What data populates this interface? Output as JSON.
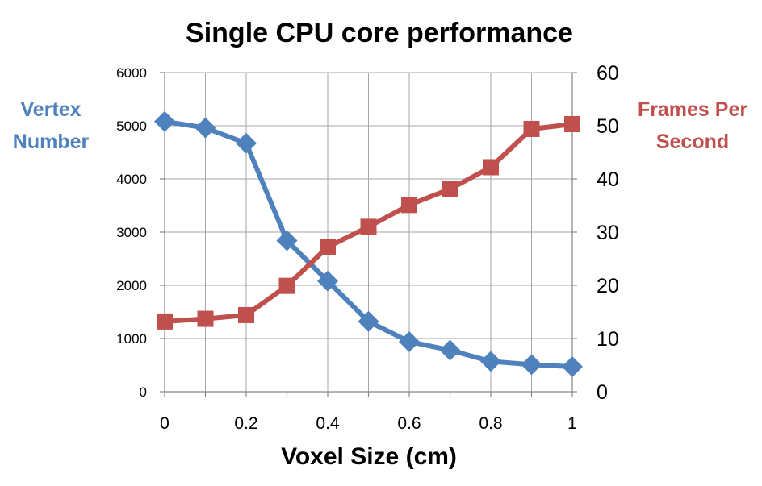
{
  "chart_data": {
    "type": "line",
    "title": "Single CPU core performance",
    "xlabel": "Voxel Size (cm)",
    "ylabel_left": [
      "Vertex",
      "Number"
    ],
    "ylabel_right": [
      "Frames Per",
      "Second"
    ],
    "x": [
      0,
      0.1,
      0.2,
      0.3,
      0.4,
      0.5,
      0.6,
      0.7,
      0.8,
      0.9,
      1
    ],
    "xlim": [
      0,
      1
    ],
    "x_ticks": [
      0,
      0.2,
      0.4,
      0.6,
      0.8,
      1
    ],
    "x_tick_labels": [
      "0",
      "0.2",
      "0.4",
      "0.6",
      "0.8",
      "1"
    ],
    "ylim_left": [
      0,
      6000
    ],
    "y_ticks_left": [
      "0",
      "1000",
      "2000",
      "3000",
      "4000",
      "5000",
      "6000"
    ],
    "ylim_right": [
      0,
      60
    ],
    "y_ticks_right": [
      "0",
      "10",
      "20",
      "30",
      "40",
      "50",
      "60"
    ],
    "grid": true,
    "series": [
      {
        "axis": "left",
        "color": "#4f81bd",
        "marker": "diamond",
        "values": [
          5080,
          4960,
          4670,
          2840,
          2080,
          1320,
          940,
          780,
          570,
          510,
          470
        ]
      },
      {
        "axis": "right",
        "color": "#c0504d",
        "marker": "square",
        "values": [
          13.2,
          13.7,
          14.4,
          19.9,
          27.2,
          31.0,
          35.1,
          38.1,
          42.2,
          49.4,
          50.3
        ]
      }
    ]
  }
}
